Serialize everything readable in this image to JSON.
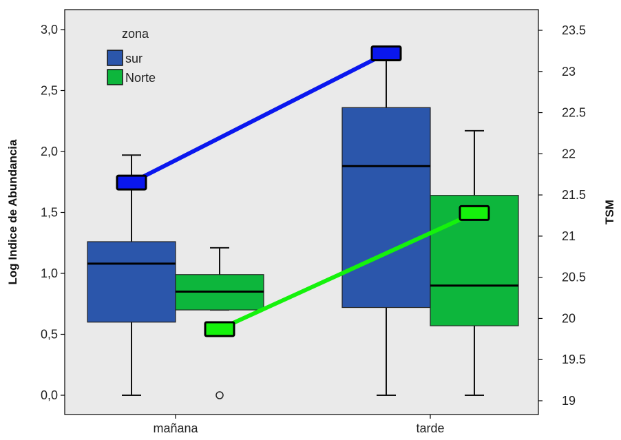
{
  "chart_data": {
    "type": "boxplot+line",
    "ylabel_left": "Log Indice de Abundancia",
    "ylabel_right": "TSM",
    "categories": [
      "mañana",
      "tarde"
    ],
    "ylim_left": [
      0,
      3.0
    ],
    "yticks_left": [
      "0,0",
      "0,5",
      "1,0",
      "1,5",
      "2,0",
      "2,5",
      "3,0"
    ],
    "ylim_right": [
      19,
      23.5
    ],
    "yticks_right": [
      "19",
      "19.5",
      "20",
      "20.5",
      "21",
      "21.5",
      "22",
      "22.5",
      "23",
      "23.5"
    ],
    "legend": {
      "title": "zona",
      "position": "top-left",
      "entries": [
        {
          "label": "sur",
          "color": "#2b56ab"
        },
        {
          "label": "Norte",
          "color": "#0db63c"
        }
      ]
    },
    "boxes": [
      {
        "category": "mañana",
        "group": "sur",
        "min": 0.0,
        "q1": 0.6,
        "median": 1.08,
        "q3": 1.26,
        "max": 1.97,
        "outliers": []
      },
      {
        "category": "mañana",
        "group": "Norte",
        "min": 0.7,
        "q1": 0.7,
        "median": 0.85,
        "q3": 0.99,
        "max": 1.21,
        "outliers": [
          0.0
        ]
      },
      {
        "category": "tarde",
        "group": "sur",
        "min": 0.0,
        "q1": 0.72,
        "median": 1.88,
        "q3": 2.36,
        "max": 2.84,
        "outliers": []
      },
      {
        "category": "tarde",
        "group": "Norte",
        "min": 0.0,
        "q1": 0.57,
        "median": 0.9,
        "q3": 1.64,
        "max": 2.17,
        "outliers": []
      }
    ],
    "tsm_series": [
      {
        "group": "sur",
        "color": "#0a17ee",
        "values": [
          21.65,
          23.22
        ]
      },
      {
        "group": "Norte",
        "color": "#15f20c",
        "values": [
          19.87,
          21.28
        ]
      }
    ],
    "grid": false,
    "plot_background": "#eaeaea"
  }
}
